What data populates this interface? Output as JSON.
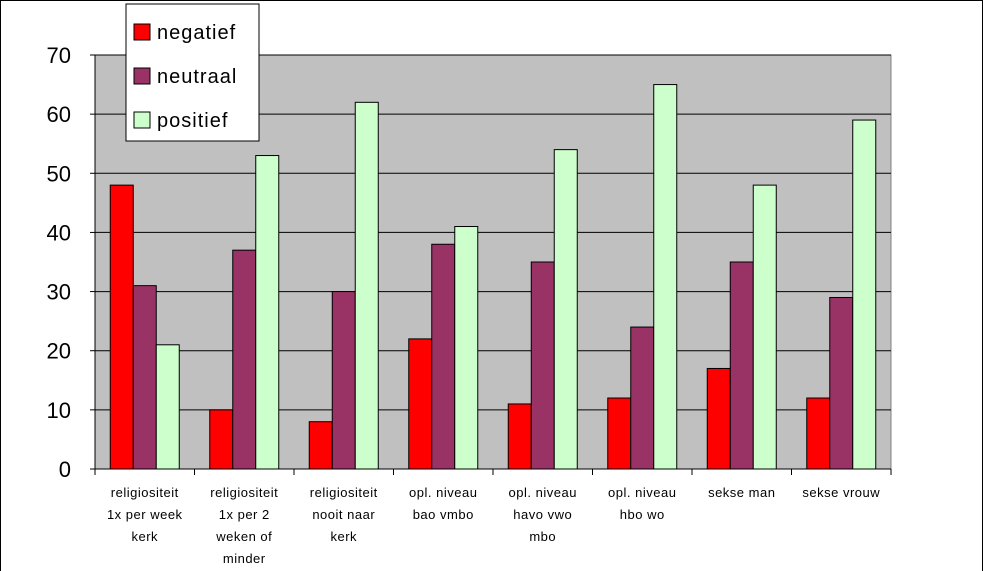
{
  "chart_data": {
    "type": "bar",
    "title": "",
    "xlabel": "",
    "ylabel": "",
    "ylim": [
      0,
      70
    ],
    "yticks": [
      0,
      10,
      20,
      30,
      40,
      50,
      60,
      70
    ],
    "grid": true,
    "legend_position": "top-left",
    "plot_background": "#c0c0c0",
    "categories": [
      [
        "religiositeit",
        "1x per week",
        "kerk"
      ],
      [
        "religiositeit",
        "1x per 2",
        "weken of",
        "minder"
      ],
      [
        "religiositeit",
        "nooit naar",
        "kerk"
      ],
      [
        "opl. niveau",
        "bao vmbo"
      ],
      [
        "opl. niveau",
        "havo vwo",
        "mbo"
      ],
      [
        "opl. niveau",
        "hbo wo"
      ],
      [
        "sekse man"
      ],
      [
        "sekse vrouw"
      ]
    ],
    "series": [
      {
        "name": "negatief",
        "color": "#ff0000",
        "values": [
          48,
          10,
          8,
          22,
          11,
          12,
          17,
          12
        ]
      },
      {
        "name": "neutraal",
        "color": "#993366",
        "values": [
          31,
          37,
          30,
          38,
          35,
          24,
          35,
          29
        ]
      },
      {
        "name": "positief",
        "color": "#ccffcc",
        "values": [
          21,
          53,
          62,
          41,
          54,
          65,
          48,
          59
        ]
      }
    ]
  }
}
